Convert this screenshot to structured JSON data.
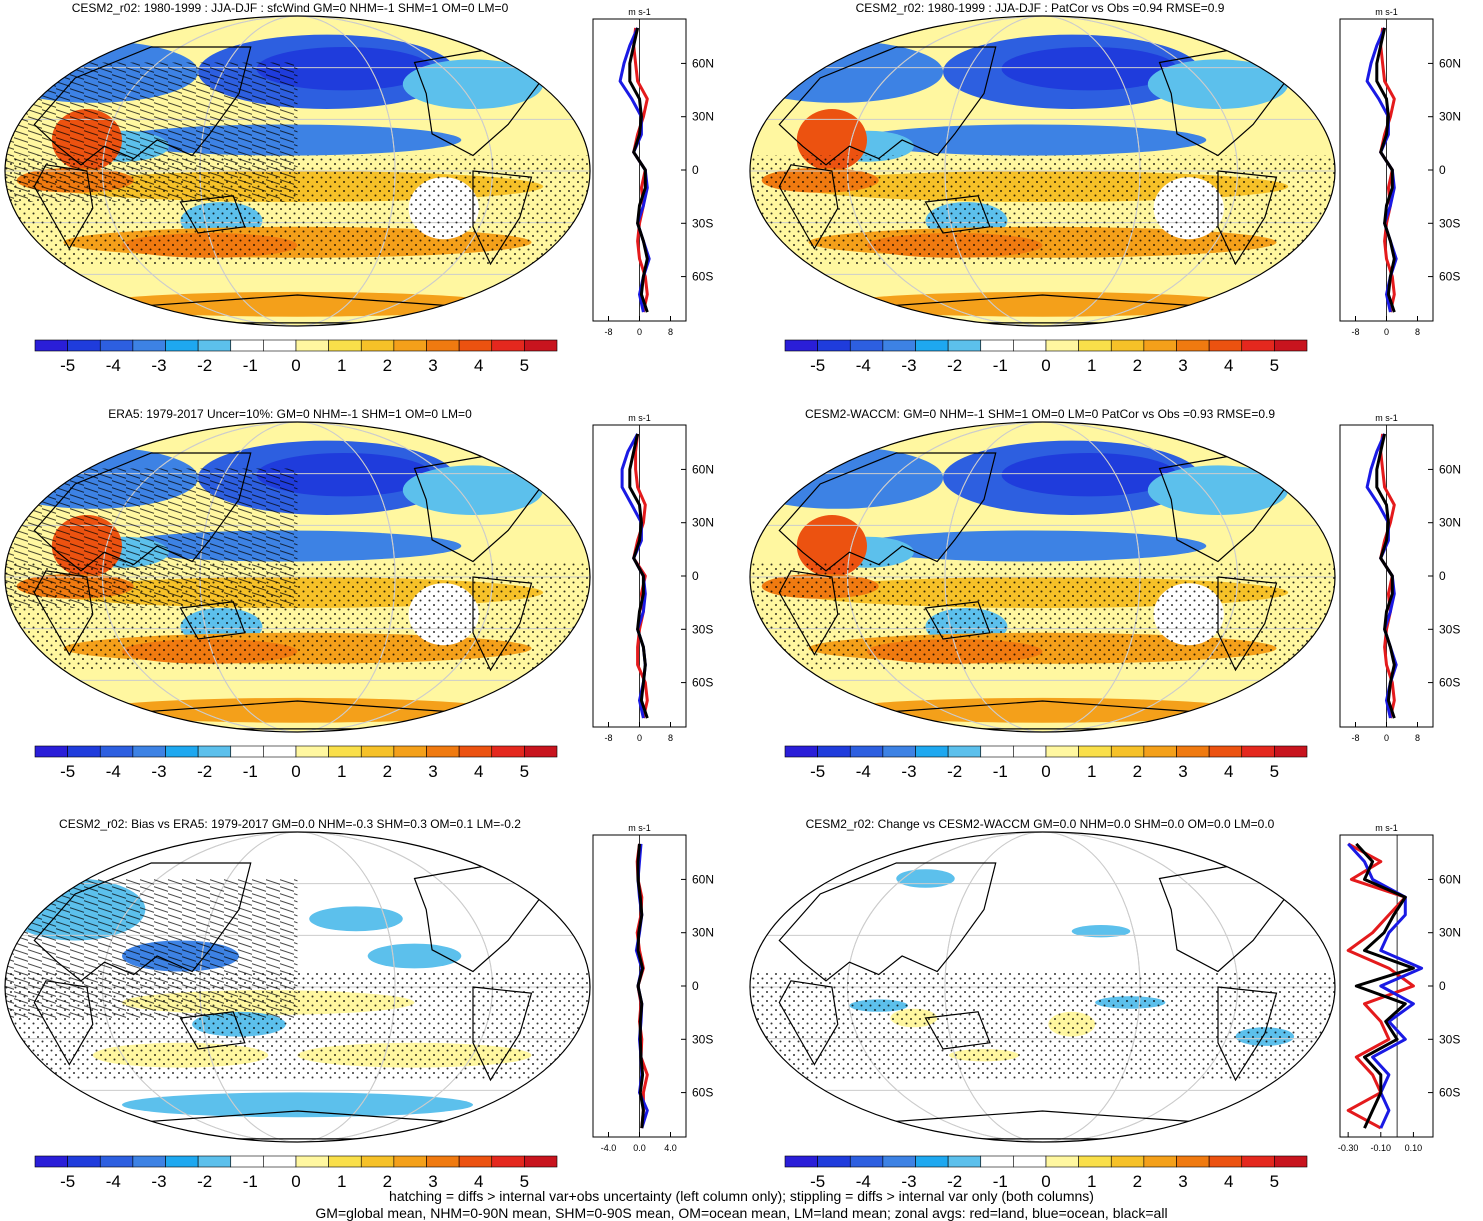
{
  "footer": {
    "line1": "hatching = diffs > internal var+obs uncertainty (left column only); stippling = diffs > internal var only (both columns)",
    "line2": "GM=global mean, NHM=0-90N mean, SHM=0-90S mean, OM=ocean mean, LM=land mean; zonal avgs: red=land, blue=ocean, black=all"
  },
  "colorbar": {
    "colors": [
      "#2a1ed8",
      "#1f3cdc",
      "#2d5fe0",
      "#3d82e4",
      "#1ea8f0",
      "#5cc0ec",
      "#ffffff",
      "#ffffff",
      "#fff7a0",
      "#f9df4a",
      "#f6c128",
      "#f4a01a",
      "#f07a10",
      "#ec5210",
      "#e4281e",
      "#c8141e"
    ],
    "tick_labels": [
      "-5",
      "-4",
      "-3",
      "-2",
      "-1",
      "0",
      "1",
      "2",
      "3",
      "4",
      "5"
    ]
  },
  "chart_data": [
    {
      "type": "heatmap",
      "title": "CESM2_r02: 1980-1999 : JJA-DJF : sfcWind GM=0 NHM=-1 SHM=1 OM=0 LM=0",
      "map_pattern": "mean",
      "hatching": true,
      "profile": {
        "unit": "m s-1",
        "xticks": [
          "-8",
          "0",
          "8"
        ],
        "xlim": [
          -12,
          12
        ],
        "yticks": [
          "60N",
          "30N",
          "0",
          "30S",
          "60S"
        ],
        "yvals": [
          60,
          30,
          0,
          -30,
          -60
        ],
        "ylim": [
          -85,
          85
        ],
        "lat": [
          80,
          70,
          60,
          50,
          40,
          30,
          20,
          10,
          0,
          -10,
          -20,
          -30,
          -40,
          -50,
          -60,
          -70,
          -80
        ],
        "land": [
          -1,
          -1.5,
          -1,
          -0.5,
          2,
          1,
          -0.5,
          -1.5,
          1.5,
          0.5,
          1,
          0,
          -0.5,
          0,
          1.5,
          2,
          1
        ],
        "ocean": [
          -0.5,
          -2.5,
          -4,
          -5,
          -2,
          0.5,
          0.5,
          -1.5,
          1.5,
          2,
          1,
          -0.5,
          1,
          2.5,
          1,
          0,
          1
        ],
        "all": [
          -0.5,
          -1.5,
          -2.5,
          -2.5,
          0,
          0.5,
          0,
          -1.5,
          1.5,
          1.5,
          0,
          -0.5,
          1,
          2,
          1,
          0.5,
          2
        ]
      }
    },
    {
      "type": "heatmap",
      "title": "CESM2_r02: 1980-1999 : JJA-DJF : PatCor vs Obs =0.94 RMSE=0.9",
      "map_pattern": "mean",
      "hatching": false,
      "profile": {
        "unit": "m s-1",
        "xticks": [
          "-8",
          "0",
          "8"
        ],
        "xlim": [
          -12,
          12
        ],
        "yticks": [
          "60N",
          "30N",
          "0",
          "30S",
          "60S"
        ],
        "yvals": [
          60,
          30,
          0,
          -30,
          -60
        ],
        "ylim": [
          -85,
          85
        ],
        "lat": [
          80,
          70,
          60,
          50,
          40,
          30,
          20,
          10,
          0,
          -10,
          -20,
          -30,
          -40,
          -50,
          -60,
          -70,
          -80
        ],
        "land": [
          -1,
          -1.5,
          -1,
          -0.5,
          2,
          1,
          -0.5,
          -1.5,
          1.5,
          0.5,
          1,
          0,
          -0.5,
          0,
          1.5,
          2,
          1
        ],
        "ocean": [
          -0.5,
          -2.5,
          -4,
          -5,
          -2,
          0.5,
          0.5,
          -1.5,
          1.5,
          2,
          1,
          -0.5,
          1,
          2.5,
          1,
          0,
          1
        ],
        "all": [
          -0.5,
          -1.5,
          -2.5,
          -2.5,
          0,
          0.5,
          0,
          -1.5,
          1.5,
          1.5,
          0,
          -0.5,
          1,
          2,
          1,
          0.5,
          2
        ]
      }
    },
    {
      "type": "heatmap",
      "title": "ERA5: 1979-2017 Uncer=10%: GM=0 NHM=-1 SHM=1 OM=0 LM=0",
      "map_pattern": "mean",
      "hatching": true,
      "profile": {
        "unit": "m s-1",
        "xticks": [
          "-8",
          "0",
          "8"
        ],
        "xlim": [
          -12,
          12
        ],
        "yticks": [
          "60N",
          "30N",
          "0",
          "30S",
          "60S"
        ],
        "yvals": [
          60,
          30,
          0,
          -30,
          -60
        ],
        "ylim": [
          -85,
          85
        ],
        "lat": [
          80,
          70,
          60,
          50,
          40,
          30,
          20,
          10,
          0,
          -10,
          -20,
          -30,
          -40,
          -50,
          -60,
          -70,
          -80
        ],
        "land": [
          -0.5,
          -1,
          -1,
          -0.5,
          1.5,
          1,
          -0.5,
          -1.5,
          1.5,
          0.5,
          1,
          0,
          -0.5,
          -0.5,
          1.5,
          2,
          1
        ],
        "ocean": [
          -0.5,
          -3,
          -4.5,
          -4.5,
          -2,
          0.5,
          0.5,
          -1.5,
          1,
          1.5,
          1,
          -0.5,
          1,
          1.5,
          1,
          0,
          1
        ],
        "all": [
          -0.5,
          -1.5,
          -2.5,
          -2.5,
          0,
          0.5,
          0,
          -1.5,
          1,
          1,
          0,
          -0.5,
          1,
          1.5,
          1,
          0.5,
          2
        ]
      }
    },
    {
      "type": "heatmap",
      "title": "CESM2-WACCM: GM=0 NHM=-1 SHM=1 OM=0 LM=0 PatCor vs Obs =0.93 RMSE=0.9",
      "map_pattern": "mean",
      "hatching": false,
      "profile": {
        "unit": "m s-1",
        "xticks": [
          "-8",
          "0",
          "8"
        ],
        "xlim": [
          -12,
          12
        ],
        "yticks": [
          "60N",
          "30N",
          "0",
          "30S",
          "60S"
        ],
        "yvals": [
          60,
          30,
          0,
          -30,
          -60
        ],
        "ylim": [
          -85,
          85
        ],
        "lat": [
          80,
          70,
          60,
          50,
          40,
          30,
          20,
          10,
          0,
          -10,
          -20,
          -30,
          -40,
          -50,
          -60,
          -70,
          -80
        ],
        "land": [
          -1,
          -1.5,
          -1,
          -0.5,
          2,
          1,
          -0.5,
          -1.5,
          1.5,
          0.5,
          1,
          0,
          -0.5,
          0,
          1.5,
          2,
          1
        ],
        "ocean": [
          -0.5,
          -2.5,
          -4,
          -5,
          -2,
          0.5,
          0.5,
          -1.5,
          1.5,
          2,
          1,
          -0.5,
          1,
          2.5,
          1,
          0,
          1
        ],
        "all": [
          -0.5,
          -1.5,
          -2.5,
          -2.5,
          0,
          0.5,
          0,
          -1.5,
          1.5,
          1.5,
          0,
          -0.5,
          1,
          2,
          1,
          0.5,
          2
        ]
      }
    },
    {
      "type": "heatmap",
      "title": "CESM2_r02: Bias vs ERA5: 1979-2017 GM=0.0 NHM=-0.3 SHM=0.3 OM=0.1 LM=-0.2",
      "map_pattern": "bias",
      "hatching": true,
      "profile": {
        "unit": "m s-1",
        "xticks": [
          "-4.0",
          "0.0",
          "4.0"
        ],
        "xlim": [
          -6,
          6
        ],
        "yticks": [
          "60N",
          "30N",
          "0",
          "30S",
          "60S"
        ],
        "yvals": [
          60,
          30,
          0,
          -30,
          -60
        ],
        "ylim": [
          -85,
          85
        ],
        "lat": [
          80,
          70,
          60,
          50,
          40,
          30,
          20,
          10,
          0,
          -10,
          -20,
          -30,
          -40,
          -50,
          -60,
          -70,
          -80
        ],
        "land": [
          0,
          -0.3,
          -0.2,
          0.3,
          0.2,
          -0.3,
          0,
          0.5,
          -0.2,
          0.2,
          0,
          0.3,
          0.2,
          1,
          0.5,
          0.5,
          0.3
        ],
        "ocean": [
          0.2,
          0,
          -0.2,
          0,
          0.3,
          0,
          -0.4,
          0.3,
          -0.2,
          0.3,
          0.2,
          0,
          0.2,
          0.3,
          0,
          1,
          0.3
        ],
        "all": [
          0,
          -0.2,
          -0.2,
          0.1,
          0.3,
          -0.1,
          -0.2,
          0.4,
          -0.2,
          0.3,
          0.1,
          0.1,
          0.2,
          0.4,
          0.1,
          0.5,
          0.3
        ]
      }
    },
    {
      "type": "heatmap",
      "title": "CESM2_r02: Change vs CESM2-WACCM GM=0.0 NHM=0.0 SHM=0.0 OM=0.0 LM=0.0",
      "map_pattern": "change",
      "hatching": false,
      "profile": {
        "unit": "m s-1",
        "xticks": [
          "-0.30",
          "-0.10",
          "0.10"
        ],
        "xlim": [
          -0.35,
          0.22
        ],
        "yticks": [
          "60N",
          "30N",
          "0",
          "30S",
          "60S"
        ],
        "yvals": [
          60,
          30,
          0,
          -30,
          -60
        ],
        "ylim": [
          -85,
          85
        ],
        "lat": [
          80,
          70,
          60,
          50,
          40,
          30,
          20,
          10,
          0,
          -10,
          -20,
          -30,
          -40,
          -50,
          -60,
          -70,
          -80
        ],
        "land": [
          -0.3,
          -0.1,
          -0.28,
          0.05,
          -0.05,
          -0.15,
          -0.3,
          -0.05,
          0.1,
          -0.2,
          -0.1,
          -0.05,
          -0.25,
          -0.15,
          -0.1,
          -0.3,
          -0.1
        ],
        "ocean": [
          -0.3,
          -0.2,
          -0.15,
          0.05,
          0.05,
          -0.05,
          -0.1,
          0.15,
          -0.1,
          0.1,
          -0.05,
          0.05,
          -0.15,
          -0.05,
          -0.1,
          -0.05,
          -0.1
        ],
        "all": [
          -0.25,
          -0.15,
          -0.2,
          0.05,
          -0.02,
          -0.08,
          -0.2,
          0.1,
          -0.25,
          0.05,
          -0.07,
          0,
          -0.2,
          -0.1,
          -0.1,
          -0.15,
          -0.2
        ]
      }
    }
  ]
}
